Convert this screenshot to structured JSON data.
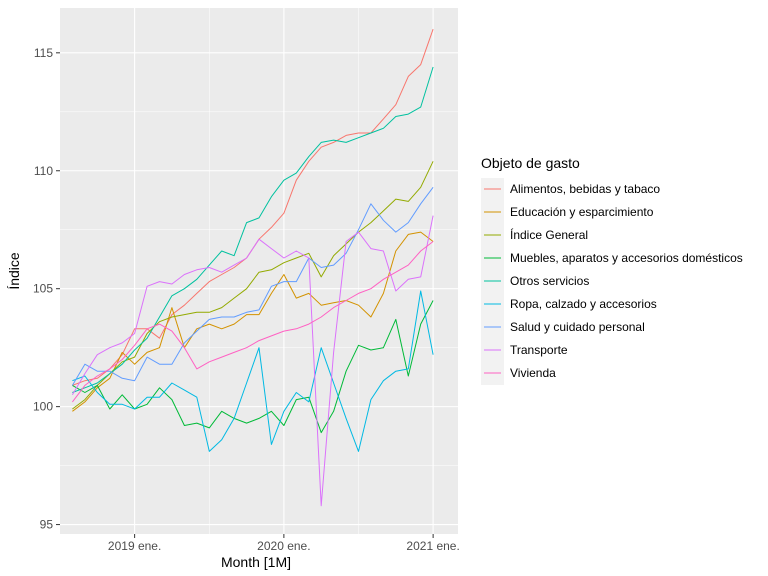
{
  "chart_data": {
    "type": "line",
    "xlabel": "Month [1M]",
    "ylabel": "Índice",
    "x_ticks": [
      "2019 ene.",
      "2020 ene.",
      "2021 ene."
    ],
    "y_ticks": [
      95,
      100,
      105,
      110,
      115
    ],
    "ylim": [
      94.6,
      116.9
    ],
    "x_range": [
      "2018-07",
      "2021-03"
    ],
    "x": [
      "2018-08",
      "2018-09",
      "2018-10",
      "2018-11",
      "2018-12",
      "2019-01",
      "2019-02",
      "2019-03",
      "2019-04",
      "2019-05",
      "2019-06",
      "2019-07",
      "2019-08",
      "2019-09",
      "2019-10",
      "2019-11",
      "2019-12",
      "2020-01",
      "2020-02",
      "2020-03",
      "2020-04",
      "2020-05",
      "2020-06",
      "2020-07",
      "2020-08",
      "2020-09",
      "2020-10",
      "2020-11",
      "2020-12",
      "2021-01"
    ],
    "grid": true,
    "legend_title": "Objeto de gasto",
    "legend_position": "right",
    "series": [
      {
        "name": "Alimentos, bebidas y tabaco",
        "color": "#F8766D",
        "values": [
          100.9,
          101.1,
          101.2,
          101.6,
          102.2,
          103.3,
          103.3,
          102.9,
          103.9,
          104.3,
          104.8,
          105.3,
          105.6,
          105.9,
          106.3,
          107.1,
          107.6,
          108.2,
          109.6,
          110.4,
          111.0,
          111.2,
          111.5,
          111.6,
          111.6,
          112.2,
          112.8,
          114.0,
          114.5,
          116.0
        ]
      },
      {
        "name": "Educación y esparcimiento",
        "color": "#D39200",
        "values": [
          99.8,
          100.2,
          100.8,
          101.2,
          102.3,
          101.8,
          102.3,
          102.5,
          104.2,
          102.5,
          103.3,
          103.5,
          103.3,
          103.5,
          103.9,
          103.9,
          104.8,
          105.6,
          104.6,
          104.8,
          104.3,
          104.4,
          104.5,
          104.3,
          103.8,
          104.8,
          106.6,
          107.3,
          107.4,
          107.0
        ]
      },
      {
        "name": "Índice General",
        "color": "#93AA00",
        "values": [
          99.9,
          100.3,
          100.9,
          101.4,
          101.9,
          102.1,
          103.1,
          103.6,
          103.8,
          103.9,
          104.0,
          104.0,
          104.2,
          104.6,
          105.0,
          105.7,
          105.8,
          106.1,
          106.3,
          106.5,
          105.5,
          106.4,
          106.9,
          107.4,
          107.8,
          108.3,
          108.8,
          108.7,
          109.3,
          110.4
        ]
      },
      {
        "name": "Muebles, aparatos y accesorios domésticos",
        "color": "#00BA38",
        "values": [
          100.9,
          100.6,
          100.9,
          99.9,
          100.5,
          99.9,
          100.1,
          100.8,
          100.3,
          99.2,
          99.3,
          99.1,
          99.8,
          99.5,
          99.3,
          99.5,
          99.8,
          99.2,
          100.3,
          100.4,
          98.9,
          99.8,
          101.5,
          102.6,
          102.4,
          102.5,
          103.7,
          101.3,
          103.5,
          104.5
        ]
      },
      {
        "name": "Otros servicios",
        "color": "#00C19F",
        "values": [
          100.6,
          100.8,
          101.0,
          101.4,
          101.8,
          102.4,
          102.9,
          103.8,
          104.7,
          105.0,
          105.4,
          106.0,
          106.6,
          106.4,
          107.8,
          108.0,
          108.9,
          109.6,
          109.9,
          110.6,
          111.2,
          111.3,
          111.2,
          111.4,
          111.6,
          111.8,
          112.3,
          112.4,
          112.7,
          114.4
        ]
      },
      {
        "name": "Ropa, calzado y accesorios",
        "color": "#00B9E3",
        "values": [
          101.1,
          101.3,
          100.6,
          100.1,
          100.1,
          99.9,
          100.4,
          100.4,
          101.0,
          100.7,
          100.4,
          98.1,
          98.6,
          99.5,
          101.0,
          102.5,
          98.4,
          99.8,
          100.6,
          100.2,
          102.5,
          101.0,
          99.5,
          98.1,
          100.3,
          101.1,
          101.5,
          101.6,
          104.9,
          102.2
        ]
      },
      {
        "name": "Salud y cuidado personal",
        "color": "#619CFF",
        "values": [
          100.9,
          101.8,
          101.5,
          101.5,
          101.2,
          101.1,
          102.1,
          101.8,
          101.8,
          102.7,
          103.2,
          103.7,
          103.8,
          103.8,
          104.0,
          104.1,
          105.1,
          105.3,
          105.3,
          106.3,
          105.9,
          106.0,
          106.5,
          107.5,
          108.6,
          107.9,
          107.4,
          107.8,
          108.6,
          109.3
        ]
      },
      {
        "name": "Transporte",
        "color": "#DB72FB",
        "values": [
          100.5,
          101.4,
          102.2,
          102.5,
          102.7,
          103.1,
          105.1,
          105.3,
          105.2,
          105.6,
          105.8,
          105.9,
          105.7,
          106.0,
          106.3,
          107.1,
          106.7,
          106.3,
          106.6,
          106.3,
          95.8,
          102.3,
          107.0,
          107.4,
          106.7,
          106.6,
          104.9,
          105.4,
          105.5,
          108.1
        ]
      },
      {
        "name": "Vivienda",
        "color": "#FF61C3",
        "values": [
          100.2,
          100.9,
          101.3,
          101.6,
          102.0,
          102.6,
          103.3,
          103.5,
          103.2,
          102.5,
          101.6,
          101.9,
          102.1,
          102.3,
          102.5,
          102.8,
          103.0,
          103.2,
          103.3,
          103.5,
          103.8,
          104.2,
          104.5,
          104.8,
          105.0,
          105.4,
          105.7,
          106.0,
          106.6,
          107.0
        ]
      }
    ]
  }
}
